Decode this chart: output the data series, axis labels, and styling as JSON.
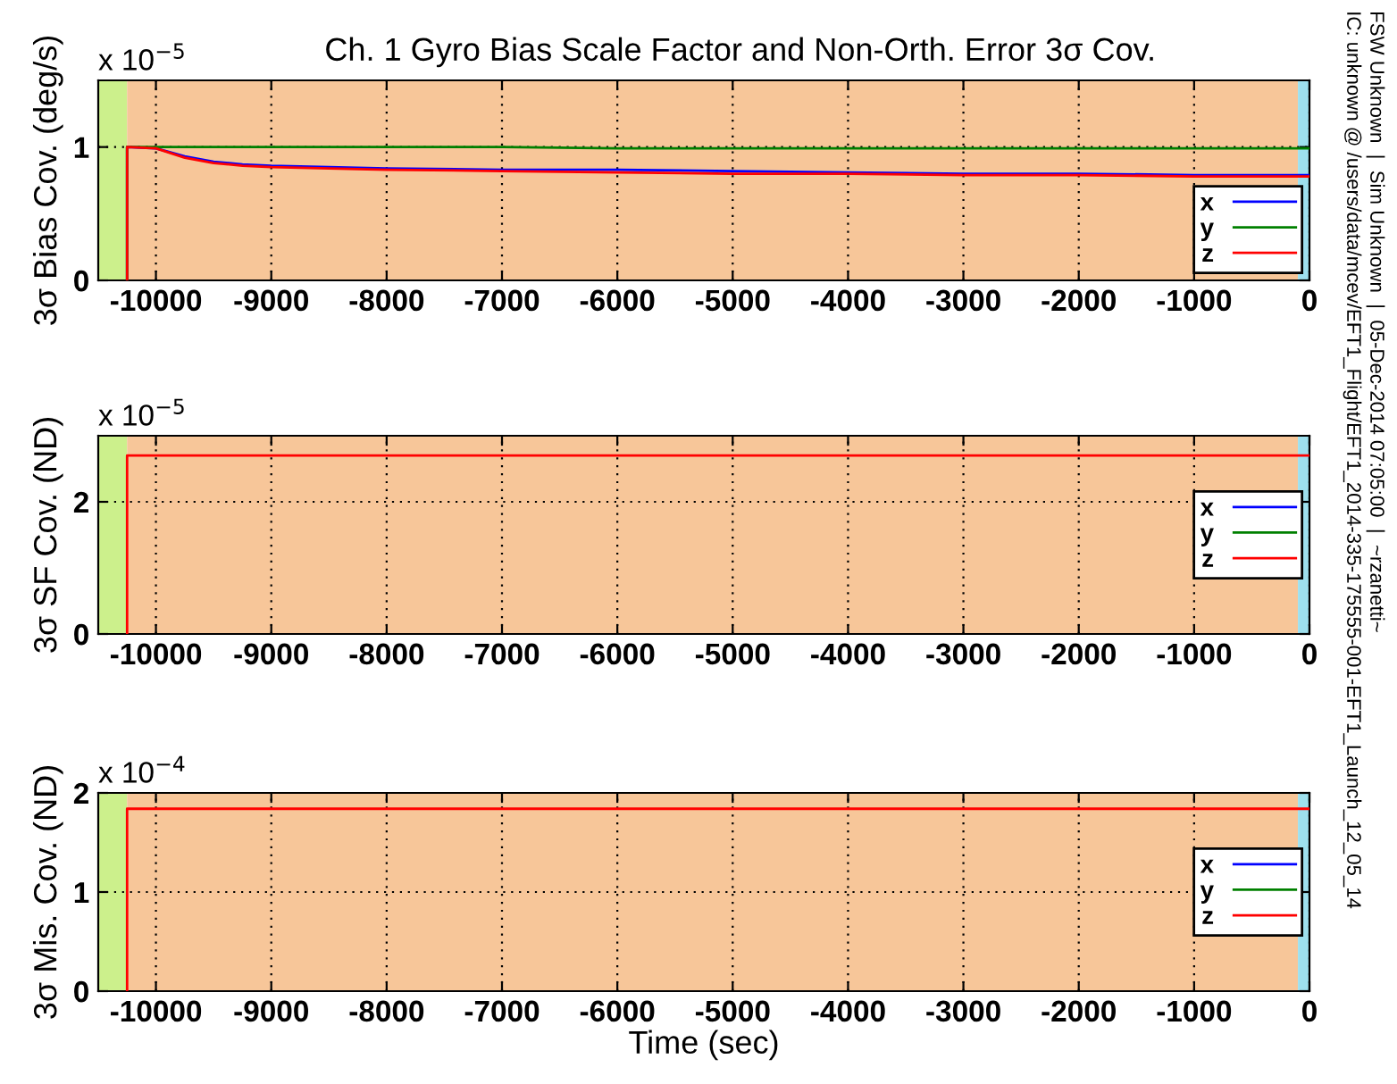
{
  "chart_data": [
    {
      "type": "line",
      "title": "Ch. 1 Gyro Bias Scale Factor and Non-Orth. Error 3σ Cov.",
      "ylabel": "3σ Bias Cov. (deg/s)",
      "annotations": [
        "x 10$^{−5}$",
        "FSW Unknown  |  Sim Unknown  |  05-Dec-2014 07:05:00  |  ~rzanetti~",
        "IC: unknown @ /users/data/mcev/EFT1_Flight/EFT1_2014-335-175555-001-EFT1_Launch_12_05_14"
      ],
      "x": [
        -10250,
        -10250,
        -10000,
        -9750,
        -9500,
        -9250,
        -9000,
        -8500,
        -8000,
        -7000,
        -6000,
        -5000,
        -4000,
        -3000,
        -2000,
        -1000,
        0
      ],
      "series": [
        {
          "name": "x",
          "color": "#0000ff",
          "values": [
            0,
            1.0,
            0.99,
            0.93,
            0.89,
            0.87,
            0.86,
            0.85,
            0.84,
            0.83,
            0.83,
            0.82,
            0.81,
            0.8,
            0.8,
            0.79,
            0.79
          ]
        },
        {
          "name": "y",
          "color": "#008000",
          "values": [
            0,
            1.0,
            1.0,
            1.0,
            1.0,
            1.0,
            1.0,
            1.0,
            1.0,
            1.0,
            0.99,
            0.99,
            0.99,
            0.99,
            0.99,
            0.99,
            0.99
          ]
        },
        {
          "name": "z",
          "color": "#ff0000",
          "values": [
            0,
            1.0,
            0.99,
            0.92,
            0.88,
            0.86,
            0.85,
            0.84,
            0.83,
            0.82,
            0.81,
            0.8,
            0.8,
            0.79,
            0.79,
            0.78,
            0.78
          ]
        }
      ],
      "xlim": [
        -10500,
        0
      ],
      "xticks": [
        -10000,
        -9000,
        -8000,
        -7000,
        -6000,
        -5000,
        -4000,
        -3000,
        -2000,
        -1000,
        0
      ],
      "ylim": [
        0,
        1.5
      ],
      "yticks": [
        0,
        1
      ],
      "grid": true,
      "legend": "bottom right",
      "bands": [
        {
          "axis": "x",
          "from": -10500,
          "to": -10250,
          "color": "#ccf08c"
        },
        {
          "axis": "x",
          "from": -10250,
          "to": -100,
          "color": "#f7c699"
        },
        {
          "axis": "x",
          "from": -100,
          "to": 0,
          "color": "#9ee0ee"
        }
      ]
    },
    {
      "type": "line",
      "ylabel": "3σ SF Cov. (ND)",
      "annotations": [
        "x 10$^{−5}$"
      ],
      "x": [
        -10250,
        -10250,
        0
      ],
      "series": [
        {
          "name": "x",
          "color": "#0000ff",
          "values": [
            null,
            null,
            null
          ]
        },
        {
          "name": "y",
          "color": "#008000",
          "values": [
            null,
            null,
            null
          ]
        },
        {
          "name": "z",
          "color": "#ff0000",
          "values": [
            0,
            2.7,
            2.7
          ]
        }
      ],
      "xlim": [
        -10500,
        0
      ],
      "xticks": [
        -10000,
        -9000,
        -8000,
        -7000,
        -6000,
        -5000,
        -4000,
        -3000,
        -2000,
        -1000,
        0
      ],
      "ylim": [
        0,
        3
      ],
      "yticks": [
        0,
        2
      ],
      "grid": true,
      "legend": "right",
      "bands": [
        {
          "axis": "x",
          "from": -10500,
          "to": -10250,
          "color": "#ccf08c"
        },
        {
          "axis": "x",
          "from": -10250,
          "to": -100,
          "color": "#f7c699"
        },
        {
          "axis": "x",
          "from": -100,
          "to": 0,
          "color": "#9ee0ee"
        }
      ]
    },
    {
      "type": "line",
      "ylabel": "3σ Mis. Cov. (ND)",
      "xlabel": "Time (sec)",
      "annotations": [
        "x 10$^{−4}$"
      ],
      "x": [
        -10250,
        -10250,
        0
      ],
      "series": [
        {
          "name": "x",
          "color": "#0000ff",
          "values": [
            null,
            null,
            null
          ]
        },
        {
          "name": "y",
          "color": "#008000",
          "values": [
            null,
            null,
            null
          ]
        },
        {
          "name": "z",
          "color": "#ff0000",
          "values": [
            0,
            1.84,
            1.84
          ]
        }
      ],
      "xlim": [
        -10500,
        0
      ],
      "xticks": [
        -10000,
        -9000,
        -8000,
        -7000,
        -6000,
        -5000,
        -4000,
        -3000,
        -2000,
        -1000,
        0
      ],
      "ylim": [
        0,
        2
      ],
      "yticks": [
        0,
        1,
        2
      ],
      "grid": true,
      "legend": "right",
      "bands": [
        {
          "axis": "x",
          "from": -10500,
          "to": -10250,
          "color": "#ccf08c"
        },
        {
          "axis": "x",
          "from": -10250,
          "to": -100,
          "color": "#f7c699"
        },
        {
          "axis": "x",
          "from": -100,
          "to": 0,
          "color": "#9ee0ee"
        }
      ]
    }
  ]
}
